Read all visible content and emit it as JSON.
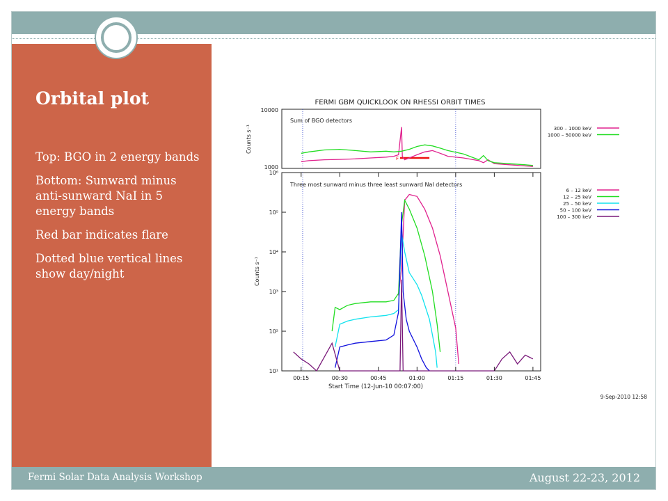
{
  "slide": {
    "title": "Orbital plot",
    "bullets": [
      "Top: BGO in 2 energy bands",
      "Bottom:  Sunward minus anti-sunward NaI in 5 energy bands",
      "Red bar indicates flare",
      "Dotted blue vertical lines show  day/night"
    ]
  },
  "footer": {
    "left": "Fermi Solar Data Analysis Workshop",
    "right": "August 22-23, 2012"
  },
  "colors": {
    "band": "#8eaeae",
    "panel": "#cd6549",
    "magenta": "#e0228e",
    "green": "#22dd22",
    "cyan": "#11e2ee",
    "blue": "#1111dd",
    "purple": "#7a1a7a",
    "flare_bar": "#ee1111",
    "daynight": "#3344cc"
  },
  "chart_data": [
    {
      "type": "line",
      "title": "FERMI GBM QUICKLOOK ON RHESSI ORBIT TIMES",
      "annotation": "Sum of BGO detectors",
      "ylabel": "Counts s⁻¹",
      "y_scale": "log",
      "ylim": [
        1000,
        10000
      ],
      "y_ticks": [
        "10000",
        "1000"
      ],
      "x_hours": [
        0.25,
        1.75
      ],
      "series": [
        {
          "name": "300 – 1000 keV",
          "color": "#e0228e",
          "x": [
            0.25,
            0.3,
            0.4,
            0.5,
            0.6,
            0.7,
            0.8,
            0.85,
            0.88,
            0.9,
            0.905,
            0.92,
            0.95,
            1.0,
            1.05,
            1.1,
            1.15,
            1.2,
            1.3,
            1.4,
            1.43,
            1.46,
            1.5,
            1.6,
            1.7,
            1.75
          ],
          "y": [
            1300,
            1350,
            1400,
            1420,
            1450,
            1500,
            1550,
            1600,
            1700,
            5000,
            1600,
            1400,
            1500,
            1700,
            1900,
            2000,
            1800,
            1600,
            1500,
            1350,
            1250,
            1400,
            1200,
            1150,
            1100,
            1080
          ]
        },
        {
          "name": "1000 – 50000 keV",
          "color": "#22dd22",
          "x": [
            0.25,
            0.3,
            0.4,
            0.5,
            0.6,
            0.7,
            0.8,
            0.85,
            0.9,
            0.95,
            1.0,
            1.05,
            1.1,
            1.15,
            1.2,
            1.3,
            1.4,
            1.43,
            1.46,
            1.5,
            1.6,
            1.7,
            1.75
          ],
          "y": [
            1800,
            1900,
            2050,
            2100,
            2000,
            1900,
            1950,
            1900,
            1950,
            2100,
            2350,
            2500,
            2400,
            2200,
            2000,
            1750,
            1400,
            1650,
            1350,
            1250,
            1200,
            1150,
            1120
          ]
        }
      ]
    },
    {
      "type": "line",
      "annotation": "Three most sunward minus three least sunward NaI detectors",
      "ylabel": "Counts s⁻¹",
      "xlabel": "Start Time (12-Jun-10 00:07:00)",
      "x_ticks": [
        "00:15",
        "00:30",
        "00:45",
        "01:00",
        "01:15",
        "01:30",
        "01:45"
      ],
      "y_scale": "log",
      "ylim": [
        10,
        1000000
      ],
      "y_ticks": [
        "10⁶",
        "10⁵",
        "10⁴",
        "10³",
        "10²",
        "10¹"
      ],
      "flare_marker": "F",
      "flare_interval_hours": [
        0.89,
        1.08
      ],
      "daynight_hours": [
        0.26,
        1.25
      ],
      "timestamp": "9-Sep-2010 12:58",
      "series": [
        {
          "name": "6 – 12 keV",
          "color": "#e0228e",
          "x": [
            0.88,
            0.9,
            0.92,
            0.95,
            1.0,
            1.05,
            1.1,
            1.15,
            1.2,
            1.25,
            1.27
          ],
          "y": [
            800,
            4000,
            200000,
            280000,
            250000,
            120000,
            40000,
            8000,
            1000,
            120,
            15
          ]
        },
        {
          "name": "12 – 25 keV",
          "color": "#22dd22",
          "x": [
            0.45,
            0.47,
            0.5,
            0.55,
            0.6,
            0.7,
            0.8,
            0.85,
            0.88,
            0.9,
            0.92,
            0.95,
            1.0,
            1.05,
            1.1,
            1.13,
            1.15
          ],
          "y": [
            100,
            400,
            350,
            450,
            500,
            550,
            550,
            600,
            900,
            50000,
            200000,
            120000,
            40000,
            8000,
            1000,
            150,
            30
          ]
        },
        {
          "name": "25 – 50 keV",
          "color": "#11e2ee",
          "x": [
            0.47,
            0.5,
            0.55,
            0.6,
            0.7,
            0.8,
            0.85,
            0.88,
            0.9,
            0.92,
            0.95,
            1.0,
            1.03,
            1.08,
            1.1,
            1.12,
            1.13
          ],
          "y": [
            40,
            150,
            180,
            200,
            230,
            250,
            280,
            350,
            30000,
            10000,
            3000,
            1500,
            800,
            200,
            80,
            30,
            12
          ]
        },
        {
          "name": "50 – 100 keV",
          "color": "#1111dd",
          "x": [
            0.47,
            0.5,
            0.55,
            0.6,
            0.7,
            0.8,
            0.85,
            0.88,
            0.9,
            0.91,
            0.93,
            0.95,
            1.0,
            1.03,
            1.06,
            1.08
          ],
          "y": [
            12,
            40,
            45,
            50,
            55,
            60,
            80,
            300,
            100000,
            1000,
            200,
            100,
            40,
            20,
            12,
            10
          ]
        },
        {
          "name": "100 – 300 keV",
          "color": "#7a1a7a",
          "x": [
            0.2,
            0.25,
            0.3,
            0.35,
            0.45,
            0.5,
            0.6,
            0.7,
            0.8,
            0.85,
            0.89,
            0.9,
            0.91,
            0.95,
            1.0,
            1.5,
            1.55,
            1.6,
            1.65,
            1.7,
            1.75
          ],
          "y": [
            30,
            20,
            15,
            10,
            50,
            10,
            10,
            10,
            10,
            10,
            10,
            2000,
            10,
            10,
            10,
            10,
            20,
            30,
            15,
            25,
            20
          ]
        }
      ]
    }
  ]
}
